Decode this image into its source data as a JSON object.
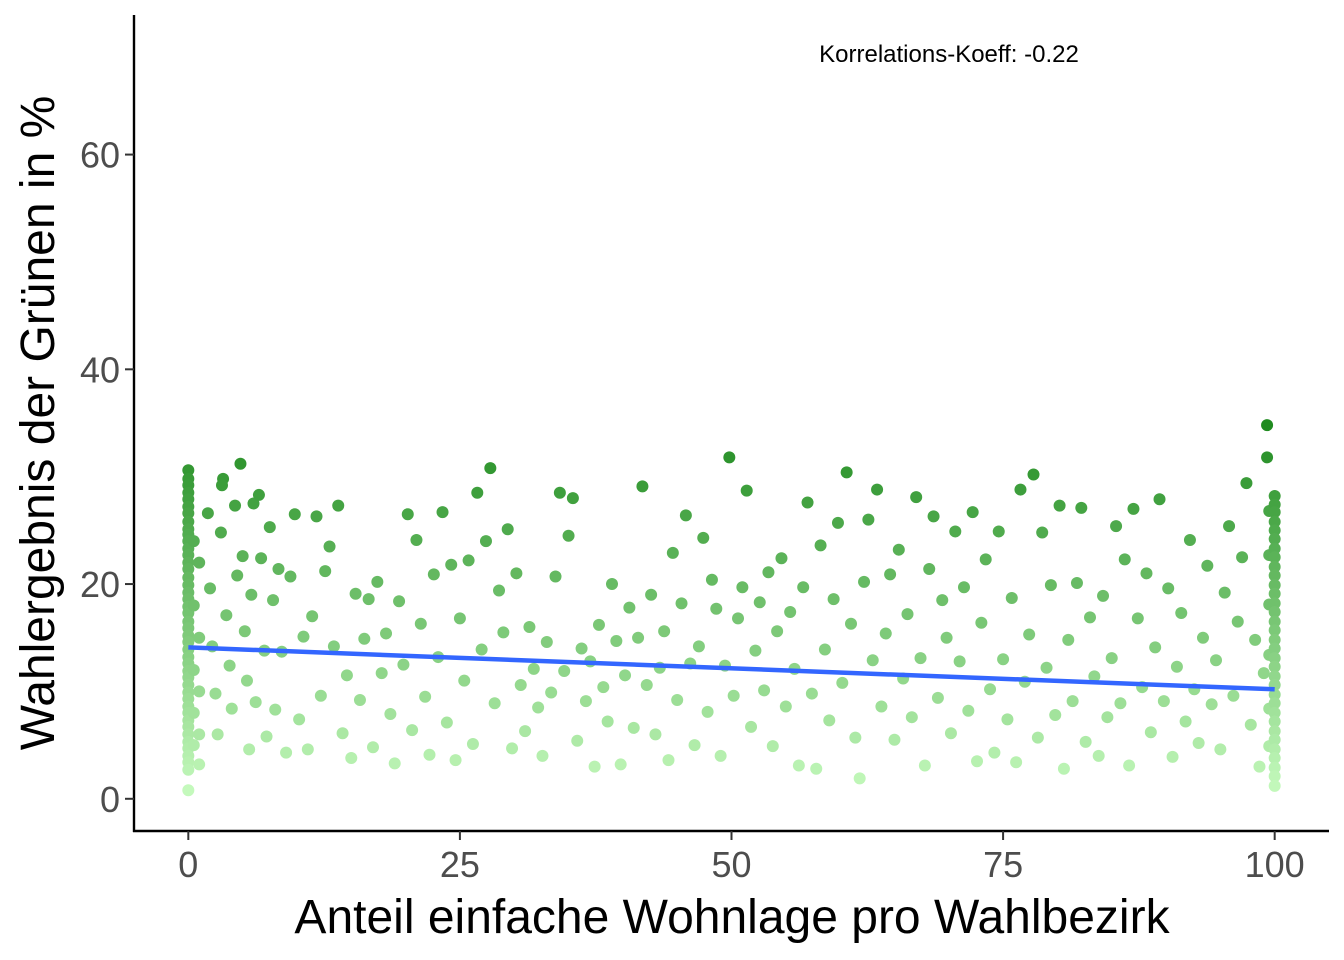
{
  "chart_data": {
    "type": "scatter",
    "xlabel": "Anteil einfache Wohnlage pro Wahlbezirk",
    "ylabel": "Wahlergebnis der Grünen in %",
    "annotation": "Korrelations-Koeff: -0.22",
    "xlim": [
      -5,
      105
    ],
    "ylim": [
      -3,
      73
    ],
    "xticks": [
      0,
      25,
      50,
      75,
      100
    ],
    "yticks": [
      0,
      20,
      40,
      60
    ],
    "grid": false,
    "point_color_scale": [
      "#c8fcc0",
      "#1f8a1f"
    ],
    "points_note": "one point per polling district, colour from light green (low y) to dark green (high y)",
    "points": [
      [
        0,
        30.6
      ],
      [
        0,
        29.8
      ],
      [
        0,
        29.2
      ],
      [
        0,
        28.5
      ],
      [
        0,
        27.9
      ],
      [
        0,
        27.2
      ],
      [
        0,
        26.6
      ],
      [
        0,
        25.8
      ],
      [
        0,
        25.1
      ],
      [
        0,
        24.6
      ],
      [
        0,
        24.0
      ],
      [
        0,
        23.3
      ],
      [
        0,
        22.7
      ],
      [
        0,
        22.0
      ],
      [
        0,
        21.4
      ],
      [
        0,
        20.6
      ],
      [
        0,
        19.9
      ],
      [
        0,
        19.2
      ],
      [
        0,
        18.6
      ],
      [
        0,
        17.9
      ],
      [
        0,
        17.3
      ],
      [
        0,
        16.5
      ],
      [
        0,
        15.9
      ],
      [
        0,
        15.2
      ],
      [
        0,
        14.6
      ],
      [
        0,
        13.9
      ],
      [
        0,
        13.2
      ],
      [
        0,
        12.6
      ],
      [
        0,
        11.9
      ],
      [
        0,
        11.3
      ],
      [
        0,
        10.6
      ],
      [
        0,
        9.9
      ],
      [
        0,
        9.3
      ],
      [
        0,
        8.6
      ],
      [
        0,
        8.0
      ],
      [
        0,
        7.3
      ],
      [
        0,
        6.7
      ],
      [
        0,
        6.0
      ],
      [
        0,
        5.3
      ],
      [
        0,
        4.7
      ],
      [
        0,
        4.0
      ],
      [
        0,
        3.4
      ],
      [
        0,
        2.7
      ],
      [
        0,
        0.8
      ],
      [
        0.5,
        24.0
      ],
      [
        0.5,
        18.0
      ],
      [
        0.5,
        12.0
      ],
      [
        0.5,
        8.0
      ],
      [
        0.5,
        5.0
      ],
      [
        1.0,
        22.0
      ],
      [
        1.0,
        15.0
      ],
      [
        1.0,
        10.0
      ],
      [
        1.0,
        6.0
      ],
      [
        1.0,
        3.2
      ],
      [
        1.8,
        26.6
      ],
      [
        2.0,
        19.6
      ],
      [
        2.2,
        14.2
      ],
      [
        2.5,
        9.8
      ],
      [
        2.7,
        6.0
      ],
      [
        3.0,
        24.8
      ],
      [
        3.2,
        29.8
      ],
      [
        3.1,
        29.2
      ],
      [
        3.5,
        17.1
      ],
      [
        3.8,
        12.4
      ],
      [
        4.0,
        8.4
      ],
      [
        4.3,
        27.3
      ],
      [
        4.5,
        20.8
      ],
      [
        4.8,
        31.2
      ],
      [
        5.0,
        22.6
      ],
      [
        5.2,
        15.6
      ],
      [
        5.4,
        11.0
      ],
      [
        5.6,
        4.6
      ],
      [
        5.8,
        19.0
      ],
      [
        6.0,
        27.5
      ],
      [
        6.2,
        9.0
      ],
      [
        6.5,
        28.3
      ],
      [
        6.7,
        22.4
      ],
      [
        7.0,
        13.8
      ],
      [
        7.2,
        5.8
      ],
      [
        7.5,
        25.3
      ],
      [
        7.8,
        18.5
      ],
      [
        8.0,
        8.3
      ],
      [
        8.3,
        21.4
      ],
      [
        8.6,
        13.7
      ],
      [
        9.0,
        4.3
      ],
      [
        9.4,
        20.7
      ],
      [
        9.8,
        26.5
      ],
      [
        10.2,
        7.4
      ],
      [
        10.6,
        15.1
      ],
      [
        11.0,
        4.6
      ],
      [
        11.4,
        17.0
      ],
      [
        11.8,
        26.3
      ],
      [
        12.2,
        9.6
      ],
      [
        12.6,
        21.2
      ],
      [
        13.0,
        23.5
      ],
      [
        13.4,
        14.2
      ],
      [
        13.8,
        27.3
      ],
      [
        14.2,
        6.1
      ],
      [
        14.6,
        11.5
      ],
      [
        15.0,
        3.8
      ],
      [
        15.4,
        19.1
      ],
      [
        15.8,
        9.2
      ],
      [
        16.2,
        14.9
      ],
      [
        16.6,
        18.6
      ],
      [
        17.0,
        4.8
      ],
      [
        17.4,
        20.2
      ],
      [
        17.8,
        11.7
      ],
      [
        18.2,
        15.4
      ],
      [
        18.6,
        7.9
      ],
      [
        19.0,
        3.3
      ],
      [
        19.4,
        18.4
      ],
      [
        19.8,
        12.5
      ],
      [
        20.2,
        26.5
      ],
      [
        20.6,
        6.4
      ],
      [
        21.0,
        24.1
      ],
      [
        21.4,
        16.3
      ],
      [
        21.8,
        9.5
      ],
      [
        22.2,
        4.1
      ],
      [
        22.6,
        20.9
      ],
      [
        23.0,
        13.2
      ],
      [
        23.4,
        26.7
      ],
      [
        23.8,
        7.1
      ],
      [
        24.2,
        21.8
      ],
      [
        24.6,
        3.6
      ],
      [
        25.0,
        16.8
      ],
      [
        25.4,
        11.0
      ],
      [
        25.8,
        22.2
      ],
      [
        26.2,
        5.1
      ],
      [
        26.6,
        28.5
      ],
      [
        27.0,
        13.9
      ],
      [
        27.4,
        24.0
      ],
      [
        27.8,
        30.8
      ],
      [
        28.2,
        8.9
      ],
      [
        28.6,
        19.4
      ],
      [
        29.0,
        15.5
      ],
      [
        29.4,
        25.1
      ],
      [
        29.8,
        4.7
      ],
      [
        30.2,
        21.0
      ],
      [
        30.6,
        10.6
      ],
      [
        31.0,
        6.3
      ],
      [
        31.4,
        16.0
      ],
      [
        31.8,
        12.1
      ],
      [
        32.2,
        8.5
      ],
      [
        32.6,
        4.0
      ],
      [
        33.0,
        14.6
      ],
      [
        33.4,
        9.9
      ],
      [
        33.8,
        20.7
      ],
      [
        34.2,
        28.5
      ],
      [
        34.6,
        11.9
      ],
      [
        35.0,
        24.5
      ],
      [
        35.4,
        28.0
      ],
      [
        35.8,
        5.4
      ],
      [
        36.2,
        14.0
      ],
      [
        36.6,
        9.1
      ],
      [
        37.0,
        12.8
      ],
      [
        37.4,
        3.0
      ],
      [
        37.8,
        16.2
      ],
      [
        38.2,
        10.4
      ],
      [
        38.6,
        7.2
      ],
      [
        39.0,
        20.0
      ],
      [
        39.4,
        14.7
      ],
      [
        39.8,
        3.2
      ],
      [
        40.2,
        11.5
      ],
      [
        40.6,
        17.8
      ],
      [
        41.0,
        6.6
      ],
      [
        41.4,
        15.0
      ],
      [
        41.8,
        29.1
      ],
      [
        42.2,
        10.6
      ],
      [
        42.6,
        19.0
      ],
      [
        43.0,
        6.0
      ],
      [
        43.4,
        12.2
      ],
      [
        43.8,
        15.6
      ],
      [
        44.2,
        3.6
      ],
      [
        44.6,
        22.9
      ],
      [
        45.0,
        9.2
      ],
      [
        45.4,
        18.2
      ],
      [
        45.8,
        26.4
      ],
      [
        46.2,
        12.6
      ],
      [
        46.6,
        5.0
      ],
      [
        47.0,
        14.2
      ],
      [
        47.4,
        24.3
      ],
      [
        47.8,
        8.1
      ],
      [
        48.2,
        20.4
      ],
      [
        48.6,
        17.7
      ],
      [
        49.0,
        4.0
      ],
      [
        49.4,
        12.4
      ],
      [
        49.8,
        31.8
      ],
      [
        50.2,
        9.6
      ],
      [
        50.6,
        16.8
      ],
      [
        51.0,
        19.7
      ],
      [
        51.4,
        28.7
      ],
      [
        51.8,
        6.7
      ],
      [
        52.2,
        13.8
      ],
      [
        52.6,
        18.3
      ],
      [
        53.0,
        10.1
      ],
      [
        53.4,
        21.1
      ],
      [
        53.8,
        4.9
      ],
      [
        54.2,
        15.6
      ],
      [
        54.6,
        22.4
      ],
      [
        55.0,
        8.6
      ],
      [
        55.4,
        17.4
      ],
      [
        55.8,
        12.1
      ],
      [
        56.2,
        3.1
      ],
      [
        56.6,
        19.7
      ],
      [
        57.0,
        27.6
      ],
      [
        57.4,
        9.8
      ],
      [
        57.8,
        2.8
      ],
      [
        58.2,
        23.6
      ],
      [
        58.6,
        13.9
      ],
      [
        59.0,
        7.3
      ],
      [
        59.4,
        18.6
      ],
      [
        59.8,
        25.7
      ],
      [
        60.2,
        10.8
      ],
      [
        60.6,
        30.4
      ],
      [
        61.0,
        16.3
      ],
      [
        61.4,
        5.7
      ],
      [
        61.8,
        1.9
      ],
      [
        62.2,
        20.2
      ],
      [
        62.6,
        26.0
      ],
      [
        63.0,
        12.9
      ],
      [
        63.4,
        28.8
      ],
      [
        63.8,
        8.6
      ],
      [
        64.2,
        15.4
      ],
      [
        64.6,
        20.9
      ],
      [
        65.0,
        5.5
      ],
      [
        65.4,
        23.2
      ],
      [
        65.8,
        11.2
      ],
      [
        66.2,
        17.2
      ],
      [
        66.6,
        7.6
      ],
      [
        67.0,
        28.1
      ],
      [
        67.4,
        13.1
      ],
      [
        67.8,
        3.1
      ],
      [
        68.2,
        21.4
      ],
      [
        68.6,
        26.3
      ],
      [
        69.0,
        9.4
      ],
      [
        69.4,
        18.5
      ],
      [
        69.8,
        15.0
      ],
      [
        70.2,
        6.1
      ],
      [
        70.6,
        24.9
      ],
      [
        71.0,
        12.8
      ],
      [
        71.4,
        19.7
      ],
      [
        71.8,
        8.2
      ],
      [
        72.2,
        26.7
      ],
      [
        72.6,
        3.5
      ],
      [
        73.0,
        16.4
      ],
      [
        73.4,
        22.3
      ],
      [
        73.8,
        10.2
      ],
      [
        74.2,
        4.3
      ],
      [
        74.6,
        24.9
      ],
      [
        75.0,
        13.0
      ],
      [
        75.4,
        7.4
      ],
      [
        75.8,
        18.7
      ],
      [
        76.2,
        3.4
      ],
      [
        76.6,
        28.8
      ],
      [
        77.0,
        10.9
      ],
      [
        77.4,
        15.3
      ],
      [
        77.8,
        30.2
      ],
      [
        78.2,
        5.7
      ],
      [
        78.6,
        24.8
      ],
      [
        79.0,
        12.2
      ],
      [
        79.4,
        19.9
      ],
      [
        79.8,
        7.8
      ],
      [
        80.2,
        27.3
      ],
      [
        80.6,
        2.8
      ],
      [
        81.0,
        14.8
      ],
      [
        81.4,
        9.1
      ],
      [
        81.8,
        20.1
      ],
      [
        82.2,
        27.1
      ],
      [
        82.6,
        5.3
      ],
      [
        83.0,
        16.9
      ],
      [
        83.4,
        11.4
      ],
      [
        83.8,
        4.0
      ],
      [
        84.2,
        18.9
      ],
      [
        84.6,
        7.6
      ],
      [
        85.0,
        13.1
      ],
      [
        85.4,
        25.4
      ],
      [
        85.8,
        8.9
      ],
      [
        86.2,
        22.3
      ],
      [
        86.6,
        3.1
      ],
      [
        87.0,
        27.0
      ],
      [
        87.4,
        16.8
      ],
      [
        87.8,
        10.4
      ],
      [
        88.2,
        21.0
      ],
      [
        88.6,
        6.2
      ],
      [
        89.0,
        14.1
      ],
      [
        89.4,
        27.9
      ],
      [
        89.8,
        9.1
      ],
      [
        90.2,
        19.6
      ],
      [
        90.6,
        3.9
      ],
      [
        91.0,
        12.3
      ],
      [
        91.4,
        17.3
      ],
      [
        91.8,
        7.2
      ],
      [
        92.2,
        24.1
      ],
      [
        92.6,
        10.2
      ],
      [
        93.0,
        5.2
      ],
      [
        93.4,
        15.0
      ],
      [
        93.8,
        21.7
      ],
      [
        94.2,
        8.8
      ],
      [
        94.6,
        12.9
      ],
      [
        95.0,
        4.6
      ],
      [
        95.4,
        19.2
      ],
      [
        95.8,
        25.4
      ],
      [
        96.2,
        9.6
      ],
      [
        96.6,
        16.5
      ],
      [
        97.0,
        22.5
      ],
      [
        97.4,
        29.4
      ],
      [
        97.8,
        6.9
      ],
      [
        98.2,
        14.8
      ],
      [
        98.6,
        3.0
      ],
      [
        99.0,
        11.7
      ],
      [
        99.3,
        34.8
      ],
      [
        99.3,
        31.8
      ],
      [
        99.5,
        26.8
      ],
      [
        99.5,
        22.7
      ],
      [
        99.5,
        18.1
      ],
      [
        99.5,
        13.4
      ],
      [
        99.5,
        8.4
      ],
      [
        99.5,
        4.9
      ],
      [
        100,
        28.2
      ],
      [
        100,
        27.4
      ],
      [
        100,
        26.7
      ],
      [
        100,
        25.8
      ],
      [
        100,
        25.0
      ],
      [
        100,
        24.2
      ],
      [
        100,
        23.3
      ],
      [
        100,
        22.5
      ],
      [
        100,
        21.6
      ],
      [
        100,
        20.8
      ],
      [
        100,
        19.9
      ],
      [
        100,
        19.1
      ],
      [
        100,
        18.2
      ],
      [
        100,
        17.4
      ],
      [
        100,
        16.5
      ],
      [
        100,
        15.7
      ],
      [
        100,
        14.8
      ],
      [
        100,
        14.0
      ],
      [
        100,
        13.1
      ],
      [
        100,
        12.3
      ],
      [
        100,
        11.4
      ],
      [
        100,
        10.6
      ],
      [
        100,
        9.7
      ],
      [
        100,
        8.9
      ],
      [
        100,
        8.0
      ],
      [
        100,
        7.2
      ],
      [
        100,
        6.3
      ],
      [
        100,
        5.5
      ],
      [
        100,
        4.6
      ],
      [
        100,
        3.8
      ],
      [
        100,
        2.9
      ],
      [
        100,
        2.1
      ],
      [
        100,
        1.2
      ]
    ],
    "trend_line": {
      "color": "#3366ff",
      "x": [
        0,
        100
      ],
      "y": [
        14.1,
        10.2
      ]
    }
  }
}
